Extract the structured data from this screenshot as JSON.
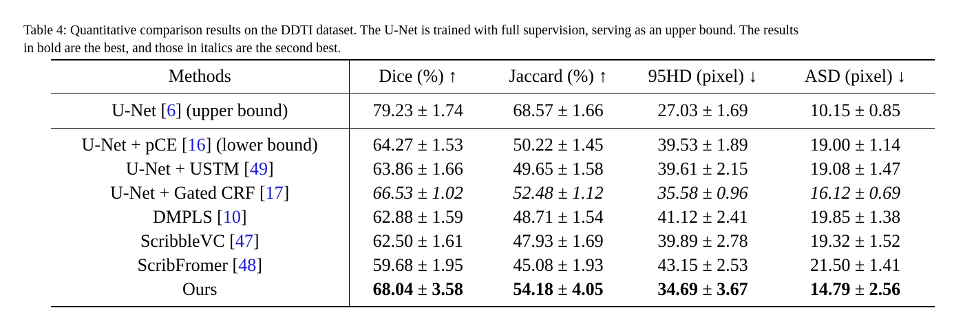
{
  "caption": {
    "line1": "Table 4: Quantitative comparison results on the DDTI dataset. The U-Net is trained with full supervision, serving as an upper bound. The results",
    "line2": "in bold are the best, and those in italics are the second best."
  },
  "headers": [
    "Methods",
    "Dice (%) ↑",
    "Jaccard (%) ↑",
    "95HD (pixel) ↓",
    "ASD (pixel) ↓"
  ],
  "upper_bound": {
    "pre": "U-Net  [",
    "cite": "6",
    "post": "] (upper bound)",
    "values": [
      "79.23 ± 1.74",
      "68.57 ± 1.66",
      "27.03 ± 1.69",
      "10.15 ± 0.85"
    ]
  },
  "rows": [
    {
      "pre": "U-Net + pCE [",
      "cite": "16",
      "post": "] (lower bound)",
      "values": [
        "64.27 ± 1.53",
        "50.22 ± 1.45",
        "39.53 ± 1.89",
        "19.00 ± 1.14"
      ]
    },
    {
      "pre": "U-Net + USTM [",
      "cite": "49",
      "post": "]",
      "values": [
        "63.86 ± 1.66",
        "49.65 ± 1.58",
        "39.61 ± 2.15",
        "19.08 ± 1.47"
      ]
    },
    {
      "pre": "U-Net + Gated CRF [",
      "cite": "17",
      "post": "]",
      "values": [
        "66.53 ± 1.02",
        "52.48 ± 1.12",
        "35.58 ± 0.96",
        "16.12 ± 0.69"
      ],
      "style": "italic"
    },
    {
      "pre": "DMPLS [",
      "cite": "10",
      "post": "]",
      "values": [
        "62.88 ± 1.59",
        "48.71 ± 1.54",
        "41.12 ± 2.41",
        "19.85 ± 1.38"
      ]
    },
    {
      "pre": "ScribbleVC [",
      "cite": "47",
      "post": "]",
      "values": [
        "62.50 ± 1.61",
        "47.93 ± 1.69",
        "39.89 ± 2.78",
        "19.32 ± 1.52"
      ]
    },
    {
      "pre": "ScribFromer [",
      "cite": "48",
      "post": "]",
      "values": [
        "59.68 ± 1.95",
        "45.08 ± 1.93",
        "43.15 ± 2.53",
        "21.50 ± 1.41"
      ]
    },
    {
      "pre": "Ours",
      "cite": "",
      "post": "",
      "values": [
        {
          "main": "68.04",
          "sep": " ± ",
          "err": "3.58"
        },
        {
          "main": "54.18",
          "sep": " ± ",
          "err": "4.05"
        },
        {
          "main": "34.69",
          "sep": " ± ",
          "err": "3.67"
        },
        {
          "main": "14.79",
          "sep": " ± ",
          "err": "2.56"
        }
      ],
      "style": "bold"
    }
  ]
}
